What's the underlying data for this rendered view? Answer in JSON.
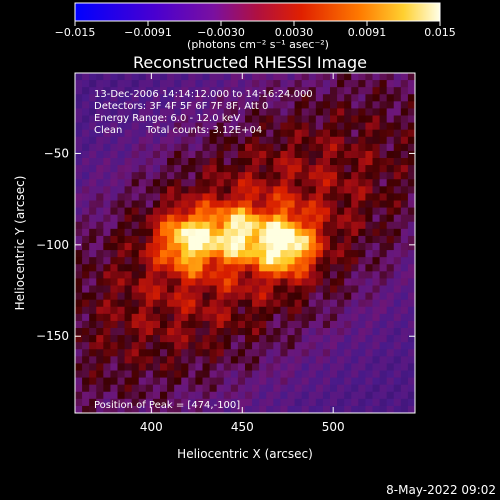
{
  "colorbar": {
    "ticks": [
      "−0.015",
      "−0.0091",
      "−0.0030",
      "0.0030",
      "0.0091",
      "0.015"
    ],
    "units_label": "(photons cm⁻² s⁻¹ asec⁻²)",
    "range": [
      -0.015,
      0.015
    ]
  },
  "chart_data": {
    "type": "heatmap",
    "title": "Reconstructed RHESSI Image",
    "xlabel": "Heliocentric X (arcsec)",
    "ylabel": "Heliocentric Y (arcsec)",
    "xlim": [
      358,
      545
    ],
    "ylim": [
      -192,
      -6
    ],
    "xticks": [
      400,
      450,
      500
    ],
    "yticks": [
      -50,
      -100,
      -150
    ],
    "xtick_labels": [
      "400",
      "450",
      "500"
    ],
    "ytick_labels": [
      "−50",
      "−100",
      "−150"
    ],
    "peak": {
      "x": 474,
      "y": -100
    },
    "sources": [
      {
        "x": 474,
        "y": -100,
        "strength": 1.0
      },
      {
        "x": 420,
        "y": -97,
        "strength": 0.85
      },
      {
        "x": 447,
        "y": -94,
        "strength": 0.7
      }
    ],
    "annotations": {
      "time_range": "13-Dec-2006 14:14:12.000 to 14:16:24.000",
      "detectors": "Detectors: 3F 4F 5F 6F 7F 8F, Att 0",
      "energy": "Energy Range: 6.0 - 12.0 keV",
      "method": "Clean",
      "total_counts": "Total counts: 3.12E+04",
      "peak_text": "Position of Peak = [474,-100]"
    }
  },
  "footer": {
    "timestamp": "8-May-2022 09:02"
  }
}
